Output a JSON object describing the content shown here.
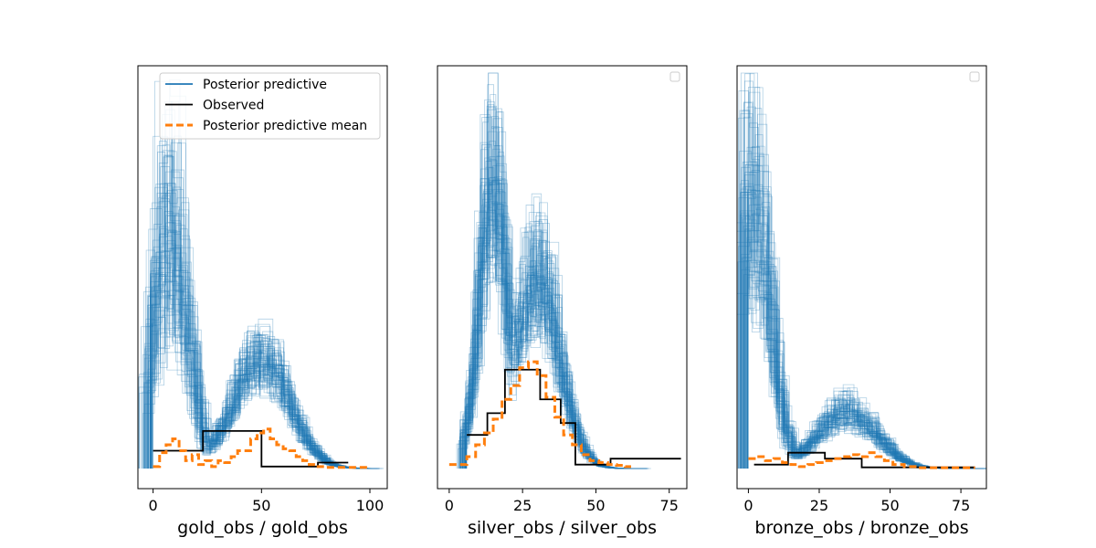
{
  "colors": {
    "posterior": "#1f77b4",
    "observed": "#000000",
    "mean": "#ff7f0e",
    "frame": "#000000"
  },
  "chart_data": [
    {
      "type": "line",
      "xlabel": "gold_obs / gold_obs",
      "xlim": [
        -7,
        108
      ],
      "ylim": [
        0,
        1
      ],
      "xticks": [
        0,
        50,
        100
      ],
      "xtick_labels": [
        "0",
        "50",
        "100"
      ],
      "yticks_visible": false,
      "legend": {
        "placement": "top-center",
        "entries": [
          "Posterior predictive",
          "Observed",
          "Posterior predictive mean"
        ]
      },
      "posterior_predictive": {
        "description_peaks": [
          {
            "center": 8,
            "height_min": 0.35,
            "height_max": 0.92
          },
          {
            "center": 50,
            "height_min": 0.25,
            "height_max": 0.33
          }
        ],
        "x_range": [
          0,
          100
        ]
      },
      "observed": {
        "x": [
          0,
          23,
          23,
          50,
          50,
          76,
          76,
          90
        ],
        "y": [
          0.045,
          0.045,
          0.095,
          0.095,
          0.005,
          0.005,
          0.015,
          0.015
        ]
      },
      "posterior_predictive_mean": {
        "x": [
          0,
          3,
          3,
          6,
          6,
          9,
          9,
          12,
          12,
          15,
          15,
          18,
          18,
          21,
          21,
          24,
          24,
          27,
          27,
          30,
          30,
          33,
          33,
          36,
          36,
          39,
          39,
          42,
          42,
          45,
          45,
          48,
          48,
          51,
          51,
          54,
          54,
          57,
          57,
          60,
          60,
          63,
          63,
          66,
          66,
          69,
          69,
          72,
          72,
          75,
          75,
          80,
          80,
          100
        ],
        "y": [
          0.005,
          0.005,
          0.04,
          0.04,
          0.06,
          0.06,
          0.075,
          0.075,
          0.045,
          0.045,
          0.02,
          0.02,
          0.035,
          0.035,
          0.01,
          0.01,
          0.02,
          0.02,
          0.005,
          0.005,
          0.02,
          0.02,
          0.015,
          0.015,
          0.03,
          0.03,
          0.045,
          0.045,
          0.045,
          0.045,
          0.075,
          0.075,
          0.09,
          0.09,
          0.1,
          0.1,
          0.075,
          0.075,
          0.06,
          0.06,
          0.05,
          0.05,
          0.045,
          0.045,
          0.03,
          0.03,
          0.02,
          0.02,
          0.01,
          0.01,
          0.005,
          0.005,
          0.003,
          0.003
        ]
      }
    },
    {
      "type": "line",
      "xlabel": "silver_obs / silver_obs",
      "xlim": [
        -4,
        81
      ],
      "ylim": [
        0,
        1
      ],
      "xticks": [
        0,
        25,
        50,
        75
      ],
      "xtick_labels": [
        "0",
        "25",
        "50",
        "75"
      ],
      "yticks_visible": false,
      "legend": {
        "placement": "top-right",
        "entries": []
      },
      "posterior_predictive": {
        "description_peaks": [
          {
            "center": 15,
            "height_min": 0.55,
            "height_max": 0.95
          },
          {
            "center": 30,
            "height_min": 0.4,
            "height_max": 0.62
          }
        ],
        "x_range": [
          6,
          65
        ]
      },
      "observed": {
        "x": [
          6,
          13,
          13,
          19,
          19,
          31,
          31,
          38,
          38,
          43,
          43,
          55,
          55,
          79
        ],
        "y": [
          0.085,
          0.085,
          0.14,
          0.14,
          0.25,
          0.25,
          0.175,
          0.175,
          0.115,
          0.115,
          0.01,
          0.01,
          0.025,
          0.025
        ]
      },
      "posterior_predictive_mean": {
        "x": [
          0,
          3,
          3,
          6,
          6,
          9,
          9,
          12,
          12,
          15,
          15,
          18,
          18,
          21,
          21,
          24,
          24,
          27,
          27,
          30,
          30,
          33,
          33,
          36,
          36,
          39,
          39,
          42,
          42,
          45,
          45,
          48,
          48,
          51,
          51,
          54,
          54,
          57,
          57,
          60,
          60,
          62
        ],
        "y": [
          0.01,
          0.01,
          0.01,
          0.01,
          0.03,
          0.03,
          0.06,
          0.06,
          0.09,
          0.09,
          0.125,
          0.125,
          0.175,
          0.175,
          0.21,
          0.21,
          0.255,
          0.255,
          0.27,
          0.27,
          0.235,
          0.235,
          0.18,
          0.18,
          0.13,
          0.13,
          0.085,
          0.085,
          0.06,
          0.06,
          0.035,
          0.035,
          0.02,
          0.02,
          0.015,
          0.015,
          0.01,
          0.01,
          0.008,
          0.008,
          0.005,
          0.005
        ]
      }
    },
    {
      "type": "line",
      "xlabel": "bronze_obs / bronze_obs",
      "xlim": [
        -4,
        84
      ],
      "ylim": [
        0,
        1
      ],
      "xticks": [
        0,
        25,
        50,
        75
      ],
      "xtick_labels": [
        "0",
        "25",
        "50",
        "75"
      ],
      "yticks_visible": false,
      "legend": {
        "placement": "top-right",
        "entries": []
      },
      "posterior_predictive": {
        "description_peaks": [
          {
            "center": 1,
            "height_min": 0.5,
            "height_max": 1.0
          },
          {
            "center": 35,
            "height_min": 0.12,
            "height_max": 0.18
          }
        ],
        "x_range": [
          0,
          80
        ]
      },
      "observed": {
        "x": [
          2,
          14,
          14,
          27,
          27,
          40,
          40,
          80
        ],
        "y": [
          0.01,
          0.01,
          0.04,
          0.04,
          0.025,
          0.025,
          0.003,
          0.003
        ]
      },
      "posterior_predictive_mean": {
        "x": [
          0,
          3,
          3,
          6,
          6,
          9,
          9,
          12,
          12,
          15,
          15,
          18,
          18,
          21,
          21,
          24,
          24,
          27,
          27,
          30,
          30,
          33,
          33,
          36,
          36,
          39,
          39,
          42,
          42,
          45,
          45,
          48,
          48,
          51,
          51,
          55,
          55,
          60,
          60,
          80
        ],
        "y": [
          0.025,
          0.025,
          0.03,
          0.03,
          0.02,
          0.02,
          0.025,
          0.025,
          0.015,
          0.015,
          0.01,
          0.01,
          0.005,
          0.005,
          0.01,
          0.01,
          0.015,
          0.015,
          0.02,
          0.02,
          0.025,
          0.025,
          0.03,
          0.03,
          0.035,
          0.035,
          0.03,
          0.03,
          0.04,
          0.04,
          0.03,
          0.03,
          0.02,
          0.02,
          0.01,
          0.01,
          0.005,
          0.005,
          0.002,
          0.002
        ]
      }
    }
  ]
}
